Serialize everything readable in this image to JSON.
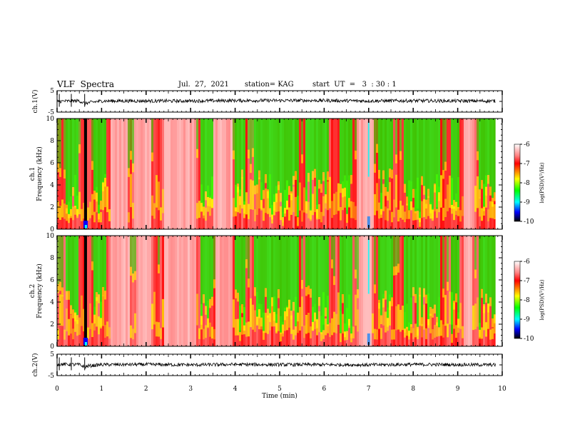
{
  "header": {
    "title": "VLF  Spectra",
    "date": "Jul.  27,  2021",
    "station": "station= KAG",
    "start": "start  UT  =   3  : 30 : 1"
  },
  "colors": {
    "spectrogram": [
      "#ff0000",
      "#ffff00",
      "#00ff00",
      "#00ffff",
      "#0000ff",
      "#000000"
    ],
    "trace": "#000000"
  },
  "chart_data": [
    {
      "type": "line",
      "name": "ch1-voltage",
      "ylabel": "ch.1(V)",
      "ylim": [
        -5,
        5
      ],
      "yticks": [
        "5",
        "-5"
      ],
      "xlim": [
        0,
        10
      ],
      "x": [
        0,
        0.5,
        0.62,
        0.7,
        1,
        2,
        3,
        4,
        5,
        6,
        7,
        8,
        9,
        9.85
      ],
      "values": [
        0.0,
        0.3,
        -1.0,
        -0.6,
        0.2,
        0.2,
        0.2,
        0.4,
        0.4,
        0.4,
        0.2,
        0.3,
        0.2,
        0.2
      ]
    },
    {
      "type": "heatmap",
      "name": "ch1-spectrogram",
      "ylabel": "ch.1\nFrequency (kHz)",
      "ylim": [
        0,
        10
      ],
      "yticks": [
        "0",
        "2",
        "4",
        "6",
        "8",
        "10"
      ],
      "xlim": [
        0,
        10
      ],
      "colorbar": {
        "label": "log(PSD)(V²/Hz)",
        "range": [
          -10,
          -6
        ],
        "ticks": [
          "-6",
          "-7",
          "-8",
          "-9",
          "-10"
        ]
      }
    },
    {
      "type": "heatmap",
      "name": "ch2-spectrogram",
      "ylabel": "ch.2\nFrequency (kHz)",
      "ylim": [
        0,
        10
      ],
      "yticks": [
        "0",
        "2",
        "4",
        "6",
        "8",
        "10"
      ],
      "xlim": [
        0,
        10
      ],
      "colorbar": {
        "label": "log(PSD)(V²/Hz)",
        "range": [
          -10,
          -6
        ],
        "ticks": [
          "-6",
          "-7",
          "-8",
          "-9",
          "-10"
        ]
      }
    },
    {
      "type": "line",
      "name": "ch2-voltage",
      "ylabel": "ch.2(V)",
      "ylim": [
        -5,
        5
      ],
      "yticks": [
        "5",
        "-5"
      ],
      "xlim": [
        0,
        10
      ],
      "xlabel": "Time  (min)",
      "xticks": [
        "0",
        "1",
        "2",
        "3",
        "4",
        "5",
        "6",
        "7",
        "8",
        "9",
        "10"
      ],
      "x": [
        0,
        0.5,
        0.62,
        0.7,
        1,
        2,
        3,
        4,
        5,
        6,
        7,
        8,
        9,
        9.85
      ],
      "values": [
        0.3,
        0.1,
        -1.0,
        -0.5,
        0.1,
        0.2,
        0.0,
        0.2,
        0.1,
        0.1,
        0.0,
        0.2,
        0.1,
        0.0
      ]
    }
  ]
}
